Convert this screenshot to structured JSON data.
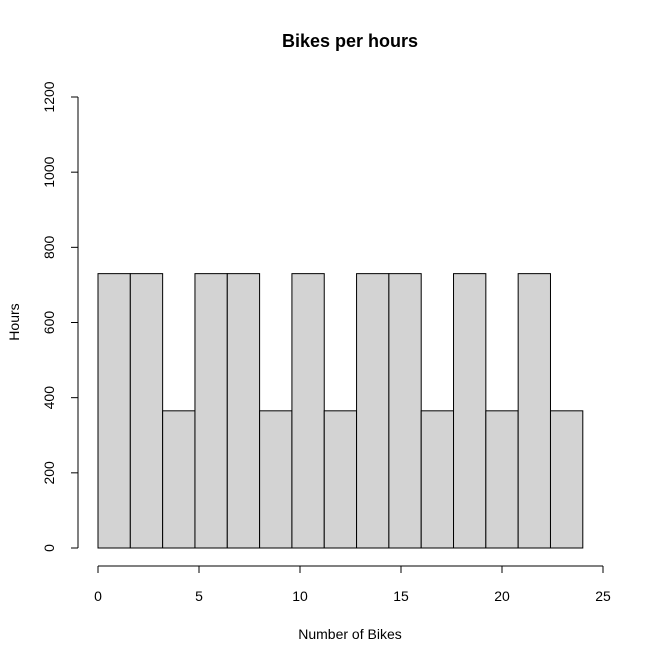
{
  "chart_data": {
    "type": "bar",
    "histogram": true,
    "title": "Bikes per hours",
    "xlabel": "Number of Bikes",
    "ylabel": "Hours",
    "bin_edges": [
      0,
      1.6,
      3.2,
      4.8,
      6.4,
      8.0,
      9.6,
      11.2,
      12.8,
      14.4,
      16.0,
      17.6,
      19.2,
      20.8,
      22.4,
      24.0
    ],
    "values": [
      730,
      730,
      365,
      730,
      730,
      365,
      730,
      365,
      730,
      730,
      365,
      730,
      365,
      730,
      365
    ],
    "xlim": [
      0,
      25
    ],
    "ylim": [
      0,
      1200
    ],
    "xticks": [
      0,
      5,
      10,
      15,
      20,
      25
    ],
    "yticks": [
      0,
      200,
      400,
      600,
      800,
      1000,
      1200
    ],
    "xtick_labels": [
      "0",
      "5",
      "10",
      "15",
      "20",
      "25"
    ],
    "ytick_labels": [
      "0",
      "200",
      "400",
      "600",
      "800",
      "1000",
      "1200"
    ],
    "bar_color": "#d3d3d3",
    "edge_color": "#000000",
    "grid": false
  }
}
